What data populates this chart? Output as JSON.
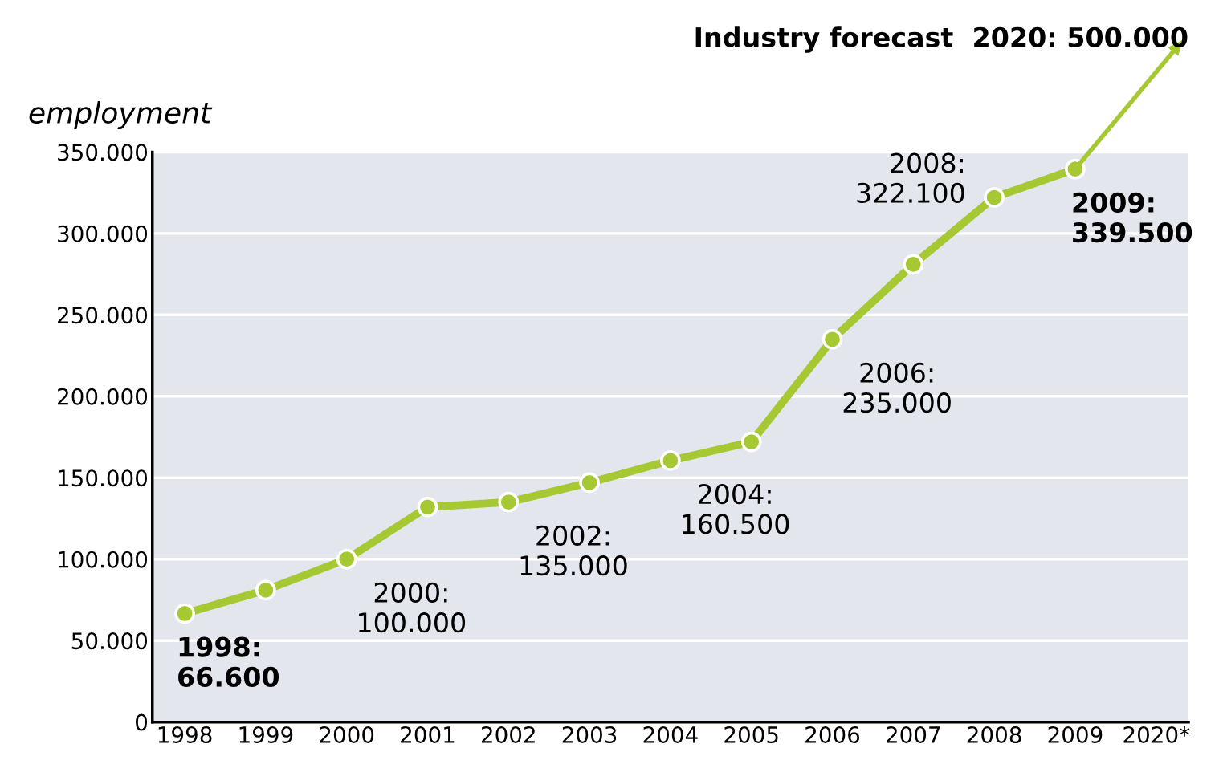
{
  "chart_data": {
    "type": "line",
    "title": "Industry forecast  2020: 500.000",
    "ylabel": "employment",
    "categories": [
      "1998",
      "1999",
      "2000",
      "2001",
      "2002",
      "2003",
      "2004",
      "2005",
      "2006",
      "2007",
      "2008",
      "2009",
      "2020*"
    ],
    "series": [
      {
        "color": "#a6c832",
        "values": [
          66600,
          81000,
          100000,
          132000,
          135000,
          147000,
          160500,
          172000,
          235000,
          281000,
          322100,
          339500,
          null
        ]
      }
    ],
    "ylim": [
      0,
      350000
    ],
    "yticks": [
      0,
      {
        "value": 50000,
        "label": "50.000"
      },
      {
        "value": 100000,
        "label": "100.000"
      },
      {
        "value": 150000,
        "label": "150.000"
      },
      {
        "value": 200000,
        "label": "200.000"
      },
      {
        "value": 250000,
        "label": "250.000"
      },
      {
        "value": 300000,
        "label": "300.000"
      },
      {
        "value": 350000,
        "label": "350.000"
      }
    ],
    "grid": "y",
    "marker": "circle",
    "line_style": "solid",
    "annotations": [
      {
        "text": "1998:\n66.600",
        "x": "1998",
        "y": 66600
      },
      {
        "text": "2000:\n100.000",
        "x": "2000",
        "y": 100000
      },
      {
        "text": "2002:\n135.000",
        "x": "2002",
        "y": 135000
      },
      {
        "text": "2004:\n160.500",
        "x": "2004",
        "y": 160500
      },
      {
        "text": "2006:\n235.000",
        "x": "2006",
        "y": 235000
      },
      {
        "text": "2008:\n322.100",
        "x": "2008",
        "y": 322100
      },
      {
        "text": "2009:\n339.500",
        "x": "2009",
        "y": 339500
      }
    ]
  }
}
